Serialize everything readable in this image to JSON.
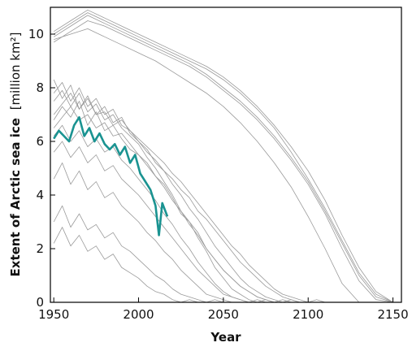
{
  "chart_data": {
    "type": "line",
    "title": "",
    "xlabel": "Year",
    "ylabel_bold": "Extent of Arctic sea ice",
    "ylabel_unit": "[million km²]",
    "xlim": [
      1948,
      2155
    ],
    "ylim": [
      0,
      11
    ],
    "x_ticks": [
      1950,
      2000,
      2050,
      2100,
      2150
    ],
    "y_ticks": [
      0,
      2,
      4,
      6,
      8,
      10
    ],
    "grid": false,
    "legend": "none",
    "colors": {
      "observed": "#1a9391",
      "model": "#9a9a9a",
      "axis": "#000000"
    },
    "series": [
      {
        "role": "observed",
        "x": [
          1950,
          1953,
          1956,
          1959,
          1962,
          1965,
          1968,
          1971,
          1974,
          1977,
          1980,
          1983,
          1986,
          1989,
          1992,
          1995,
          1998,
          2001,
          2004,
          2007,
          2010,
          2012,
          2014,
          2017
        ],
        "y": [
          6.1,
          6.4,
          6.2,
          6.0,
          6.6,
          6.9,
          6.2,
          6.5,
          6.0,
          6.3,
          5.9,
          5.7,
          5.9,
          5.5,
          5.8,
          5.2,
          5.5,
          4.8,
          4.5,
          4.2,
          3.6,
          2.5,
          3.7,
          3.2
        ]
      },
      {
        "role": "model",
        "x": [
          1950,
          1960,
          1970,
          1980,
          1990,
          2000,
          2010,
          2020,
          2030,
          2040,
          2050,
          2060,
          2070,
          2080,
          2090,
          2100,
          2110,
          2120,
          2130,
          2140,
          2150
        ],
        "y": [
          9.9,
          10.3,
          10.7,
          10.4,
          10.1,
          9.8,
          9.5,
          9.2,
          8.9,
          8.5,
          8.0,
          7.5,
          6.9,
          6.2,
          5.4,
          4.5,
          3.4,
          2.2,
          1.0,
          0.2,
          0.0
        ]
      },
      {
        "role": "model",
        "x": [
          1950,
          1960,
          1970,
          1980,
          1990,
          2000,
          2010,
          2020,
          2030,
          2040,
          2050,
          2060,
          2070,
          2080,
          2090,
          2100,
          2110,
          2120,
          2130,
          2140,
          2150
        ],
        "y": [
          10.0,
          10.4,
          10.8,
          10.5,
          10.2,
          9.9,
          9.6,
          9.3,
          9.0,
          8.7,
          8.3,
          7.8,
          7.2,
          6.5,
          5.6,
          4.6,
          3.5,
          2.3,
          1.1,
          0.3,
          0.0
        ]
      },
      {
        "role": "model",
        "x": [
          1950,
          1960,
          1970,
          1980,
          1990,
          2000,
          2010,
          2020,
          2030,
          2040,
          2050,
          2060,
          2070,
          2080,
          2090,
          2100,
          2110,
          2120,
          2130,
          2140,
          2150
        ],
        "y": [
          9.7,
          10.1,
          10.5,
          10.3,
          10.0,
          9.7,
          9.4,
          9.1,
          8.8,
          8.4,
          7.9,
          7.4,
          6.8,
          6.1,
          5.3,
          4.4,
          3.3,
          2.0,
          0.8,
          0.1,
          0.0
        ]
      },
      {
        "role": "model",
        "x": [
          1950,
          1960,
          1970,
          1980,
          1990,
          2000,
          2010,
          2020,
          2030,
          2040,
          2050,
          2060,
          2070,
          2080,
          2090,
          2100,
          2110,
          2120,
          2130,
          2140,
          2150
        ],
        "y": [
          10.1,
          10.5,
          10.9,
          10.6,
          10.3,
          10.0,
          9.7,
          9.4,
          9.1,
          8.8,
          8.4,
          7.9,
          7.3,
          6.6,
          5.8,
          4.9,
          3.8,
          2.5,
          1.3,
          0.4,
          0.0
        ]
      },
      {
        "role": "model",
        "x": [
          1950,
          1960,
          1970,
          1980,
          1990,
          2000,
          2010,
          2020,
          2030,
          2040,
          2050,
          2060,
          2070,
          2080,
          2090,
          2100,
          2110,
          2120,
          2130
        ],
        "y": [
          9.8,
          10.0,
          10.2,
          9.9,
          9.6,
          9.3,
          9.0,
          8.6,
          8.2,
          7.8,
          7.3,
          6.7,
          6.0,
          5.2,
          4.3,
          3.2,
          2.0,
          0.7,
          0.0
        ]
      },
      {
        "role": "model",
        "x": [
          1950,
          1955,
          1960,
          1965,
          1970,
          1975,
          1980,
          1985,
          1990,
          1995,
          2000,
          2005,
          2010,
          2015,
          2020,
          2025,
          2030,
          2035,
          2040,
          2045,
          2050,
          2055,
          2060,
          2065,
          2070,
          2075,
          2080
        ],
        "y": [
          7.5,
          7.9,
          7.3,
          7.8,
          7.1,
          7.4,
          6.8,
          7.0,
          6.5,
          6.2,
          5.9,
          5.4,
          5.0,
          4.5,
          4.0,
          3.4,
          3.0,
          2.4,
          1.9,
          1.3,
          0.9,
          0.5,
          0.3,
          0.1,
          0.0,
          0.1,
          0.0
        ]
      },
      {
        "role": "model",
        "x": [
          1950,
          1955,
          1960,
          1965,
          1970,
          1975,
          1980,
          1985,
          1990,
          1995,
          2000,
          2005,
          2010,
          2015,
          2020,
          2025,
          2030,
          2035,
          2040,
          2045,
          2050,
          2055,
          2060,
          2065,
          2070,
          2075,
          2080,
          2085,
          2090
        ],
        "y": [
          6.8,
          7.3,
          6.9,
          7.5,
          6.6,
          7.1,
          6.4,
          6.6,
          6.1,
          5.7,
          5.5,
          5.2,
          4.7,
          4.4,
          3.9,
          3.3,
          3.0,
          2.6,
          2.0,
          1.6,
          1.2,
          0.9,
          0.6,
          0.4,
          0.2,
          0.1,
          0.0,
          0.1,
          0.0
        ]
      },
      {
        "role": "model",
        "x": [
          1950,
          1955,
          1960,
          1965,
          1970,
          1975,
          1980,
          1985,
          1990,
          1995,
          2000,
          2005,
          2010,
          2015,
          2020,
          2025,
          2030,
          2035,
          2040,
          2045,
          2050,
          2055,
          2060,
          2065,
          2070,
          2075,
          2080,
          2085,
          2090,
          2095,
          2100
        ],
        "y": [
          8.3,
          7.6,
          8.1,
          7.2,
          7.7,
          7.0,
          7.3,
          6.7,
          6.9,
          6.3,
          6.0,
          5.7,
          5.2,
          4.9,
          4.4,
          4.0,
          3.5,
          3.1,
          2.6,
          2.1,
          1.7,
          1.3,
          0.9,
          0.6,
          0.4,
          0.2,
          0.1,
          0.0,
          0.1,
          0.0,
          0.0
        ]
      },
      {
        "role": "model",
        "x": [
          1950,
          1955,
          1960,
          1965,
          1970,
          1975,
          1980,
          1985,
          1990,
          1995,
          2000,
          2005,
          2010,
          2015,
          2020,
          2025,
          2030,
          2035,
          2040,
          2045,
          2050,
          2055,
          2060,
          2065,
          2070,
          2075
        ],
        "y": [
          6.2,
          6.6,
          6.0,
          6.4,
          5.8,
          6.1,
          5.6,
          5.8,
          5.3,
          5.0,
          4.6,
          4.2,
          3.8,
          3.3,
          2.9,
          2.4,
          2.0,
          1.5,
          1.1,
          0.7,
          0.4,
          0.2,
          0.1,
          0.0,
          0.1,
          0.0
        ]
      },
      {
        "role": "model",
        "x": [
          1950,
          1955,
          1960,
          1965,
          1970,
          1975,
          1980,
          1985,
          1990,
          1995,
          2000,
          2005,
          2010,
          2015,
          2020,
          2025,
          2030,
          2035,
          2040,
          2045,
          2050,
          2055,
          2060,
          2065,
          2070,
          2075,
          2080,
          2085,
          2090,
          2095,
          2100,
          2105,
          2110
        ],
        "y": [
          7.0,
          7.4,
          7.8,
          7.2,
          7.6,
          7.0,
          7.1,
          6.6,
          6.8,
          6.4,
          6.1,
          5.8,
          5.5,
          5.2,
          4.8,
          4.5,
          4.1,
          3.7,
          3.3,
          2.9,
          2.5,
          2.1,
          1.8,
          1.4,
          1.1,
          0.8,
          0.5,
          0.3,
          0.2,
          0.1,
          0.0,
          0.1,
          0.0
        ]
      },
      {
        "role": "model",
        "x": [
          1950,
          1955,
          1960,
          1965,
          1970,
          1975,
          1980,
          1985,
          1990,
          1995,
          2000,
          2005,
          2010,
          2015,
          2020,
          2025,
          2030,
          2035,
          2040,
          2045,
          2050,
          2055,
          2060,
          2065,
          2070
        ],
        "y": [
          5.6,
          6.0,
          5.4,
          5.8,
          5.2,
          5.5,
          4.9,
          5.1,
          4.6,
          4.3,
          4.0,
          3.6,
          3.2,
          2.8,
          2.4,
          2.0,
          1.6,
          1.2,
          0.9,
          0.6,
          0.3,
          0.2,
          0.1,
          0.0,
          0.0
        ]
      },
      {
        "role": "model",
        "x": [
          1950,
          1955,
          1960,
          1965,
          1970,
          1975,
          1980,
          1985,
          1990,
          1995,
          2000,
          2005,
          2010,
          2015,
          2020,
          2025,
          2030,
          2035,
          2040,
          2045,
          2050
        ],
        "y": [
          3.0,
          3.6,
          2.8,
          3.3,
          2.7,
          2.9,
          2.4,
          2.6,
          2.1,
          1.9,
          1.6,
          1.3,
          1.0,
          0.8,
          0.5,
          0.3,
          0.2,
          0.1,
          0.0,
          0.1,
          0.0
        ]
      },
      {
        "role": "model",
        "x": [
          1950,
          1955,
          1960,
          1965,
          1970,
          1975,
          1980,
          1985,
          1990,
          1995,
          2000,
          2005,
          2010,
          2015,
          2020,
          2025,
          2030,
          2035,
          2040
        ],
        "y": [
          2.2,
          2.8,
          2.1,
          2.5,
          1.9,
          2.1,
          1.6,
          1.8,
          1.3,
          1.1,
          0.9,
          0.6,
          0.4,
          0.3,
          0.1,
          0.0,
          0.1,
          0.0,
          0.0
        ]
      },
      {
        "role": "model",
        "x": [
          1950,
          1955,
          1960,
          1965,
          1970,
          1975,
          1980,
          1985,
          1990,
          1995,
          2000,
          2005,
          2010,
          2015,
          2020,
          2025,
          2030,
          2035,
          2040,
          2045,
          2050,
          2055,
          2060,
          2065,
          2070,
          2075,
          2080,
          2085,
          2090,
          2095,
          2100
        ],
        "y": [
          7.8,
          8.2,
          7.5,
          8.0,
          7.3,
          7.6,
          7.0,
          7.2,
          6.6,
          6.4,
          6.0,
          5.6,
          5.3,
          4.9,
          4.6,
          4.2,
          3.9,
          3.4,
          3.1,
          2.7,
          2.3,
          1.9,
          1.5,
          1.2,
          0.9,
          0.6,
          0.4,
          0.2,
          0.1,
          0.0,
          0.0
        ]
      },
      {
        "role": "model",
        "x": [
          1950,
          1955,
          1960,
          1965,
          1970,
          1975,
          1980,
          1985,
          1990,
          1995,
          2000,
          2005,
          2010,
          2015,
          2020,
          2025,
          2030,
          2035,
          2040,
          2045,
          2050,
          2055,
          2060
        ],
        "y": [
          4.6,
          5.2,
          4.4,
          4.9,
          4.2,
          4.5,
          3.9,
          4.1,
          3.6,
          3.3,
          3.0,
          2.6,
          2.3,
          1.9,
          1.6,
          1.2,
          0.9,
          0.6,
          0.3,
          0.2,
          0.1,
          0.0,
          0.0
        ]
      },
      {
        "role": "model",
        "x": [
          1950,
          1955,
          1960,
          1965,
          1970,
          1975,
          1980,
          1985,
          1990,
          1995,
          2000,
          2005,
          2010,
          2015,
          2020,
          2025,
          2030,
          2035,
          2040,
          2045,
          2050,
          2055,
          2060,
          2065,
          2070,
          2075,
          2080,
          2085
        ],
        "y": [
          6.5,
          6.9,
          7.3,
          6.8,
          7.0,
          6.5,
          6.7,
          6.2,
          6.3,
          5.9,
          5.5,
          5.1,
          4.7,
          4.3,
          3.8,
          3.4,
          2.9,
          2.5,
          2.0,
          1.6,
          1.2,
          0.9,
          0.6,
          0.4,
          0.2,
          0.1,
          0.0,
          0.0
        ]
      }
    ]
  }
}
